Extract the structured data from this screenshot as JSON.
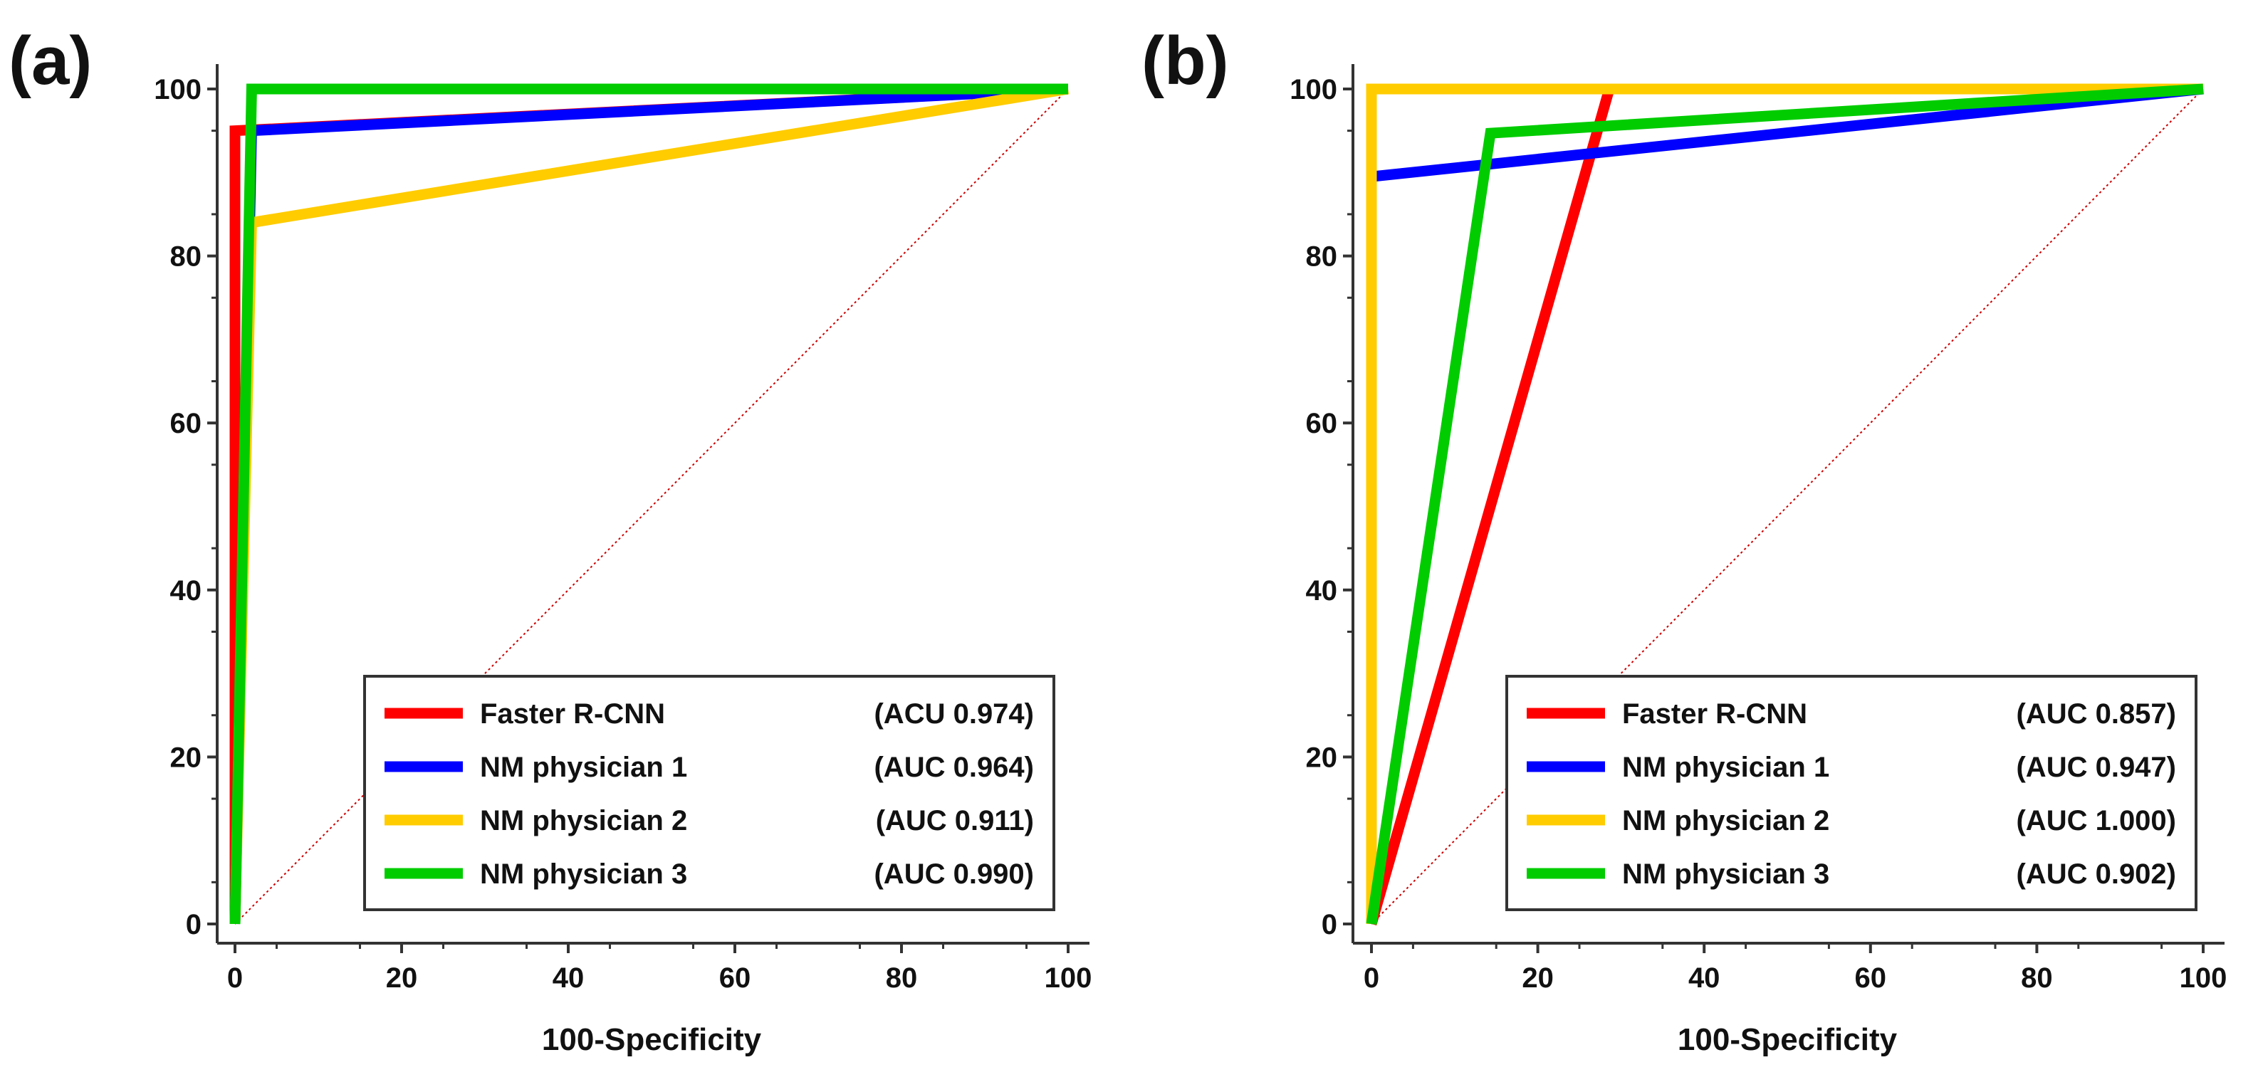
{
  "figure": {
    "background": "#ffffff"
  },
  "chart_data": [
    {
      "type": "line",
      "panel_label": "(a)",
      "xlabel": "100-Specificity",
      "ylabel": "",
      "xlim": [
        0,
        100
      ],
      "ylim": [
        0,
        100
      ],
      "xticks": [
        0,
        20,
        40,
        60,
        80,
        100
      ],
      "yticks": [
        0,
        20,
        40,
        60,
        80,
        100
      ],
      "grid": false,
      "legend_position": "bottom-right",
      "series": [
        {
          "name": "Faster R-CNN",
          "auc_label": "(ACU 0.974)",
          "color": "#ff0000",
          "x": [
            0,
            0,
            100
          ],
          "y": [
            0,
            95,
            100
          ]
        },
        {
          "name": "NM physician 1",
          "auc_label": "(AUC 0.964)",
          "color": "#0000ff",
          "x": [
            0,
            2,
            100
          ],
          "y": [
            0,
            95,
            100
          ]
        },
        {
          "name": "NM physician 2",
          "auc_label": "(AUC 0.911)",
          "color": "#ffcc00",
          "x": [
            0,
            2,
            100
          ],
          "y": [
            0,
            84,
            100
          ]
        },
        {
          "name": "NM physician 3",
          "auc_label": "(AUC 0.990)",
          "color": "#00cc00",
          "x": [
            0,
            2,
            100
          ],
          "y": [
            0,
            100,
            100
          ]
        }
      ],
      "reference_line": {
        "x": [
          0,
          100
        ],
        "y": [
          0,
          100
        ],
        "color": "#cc0000"
      }
    },
    {
      "type": "line",
      "panel_label": "(b)",
      "xlabel": "100-Specificity",
      "ylabel": "",
      "xlim": [
        0,
        100
      ],
      "ylim": [
        0,
        100
      ],
      "xticks": [
        0,
        20,
        40,
        60,
        80,
        100
      ],
      "yticks": [
        0,
        20,
        40,
        60,
        80,
        100
      ],
      "grid": false,
      "legend_position": "bottom-right",
      "series": [
        {
          "name": "Faster R-CNN",
          "auc_label": "(AUC 0.857)",
          "color": "#ff0000",
          "x": [
            0,
            28.6,
            100
          ],
          "y": [
            0,
            100,
            100
          ]
        },
        {
          "name": "NM physician 1",
          "auc_label": "(AUC 0.947)",
          "color": "#0000ff",
          "x": [
            0,
            0,
            100
          ],
          "y": [
            0,
            89.5,
            100
          ]
        },
        {
          "name": "NM physician 2",
          "auc_label": "(AUC 1.000)",
          "color": "#ffcc00",
          "x": [
            0,
            0,
            100
          ],
          "y": [
            0,
            100,
            100
          ]
        },
        {
          "name": "NM physician 3",
          "auc_label": "(AUC 0.902)",
          "color": "#00cc00",
          "x": [
            0,
            14.3,
            100
          ],
          "y": [
            0,
            94.7,
            100
          ]
        }
      ],
      "reference_line": {
        "x": [
          0,
          100
        ],
        "y": [
          0,
          100
        ],
        "color": "#cc0000"
      }
    }
  ]
}
